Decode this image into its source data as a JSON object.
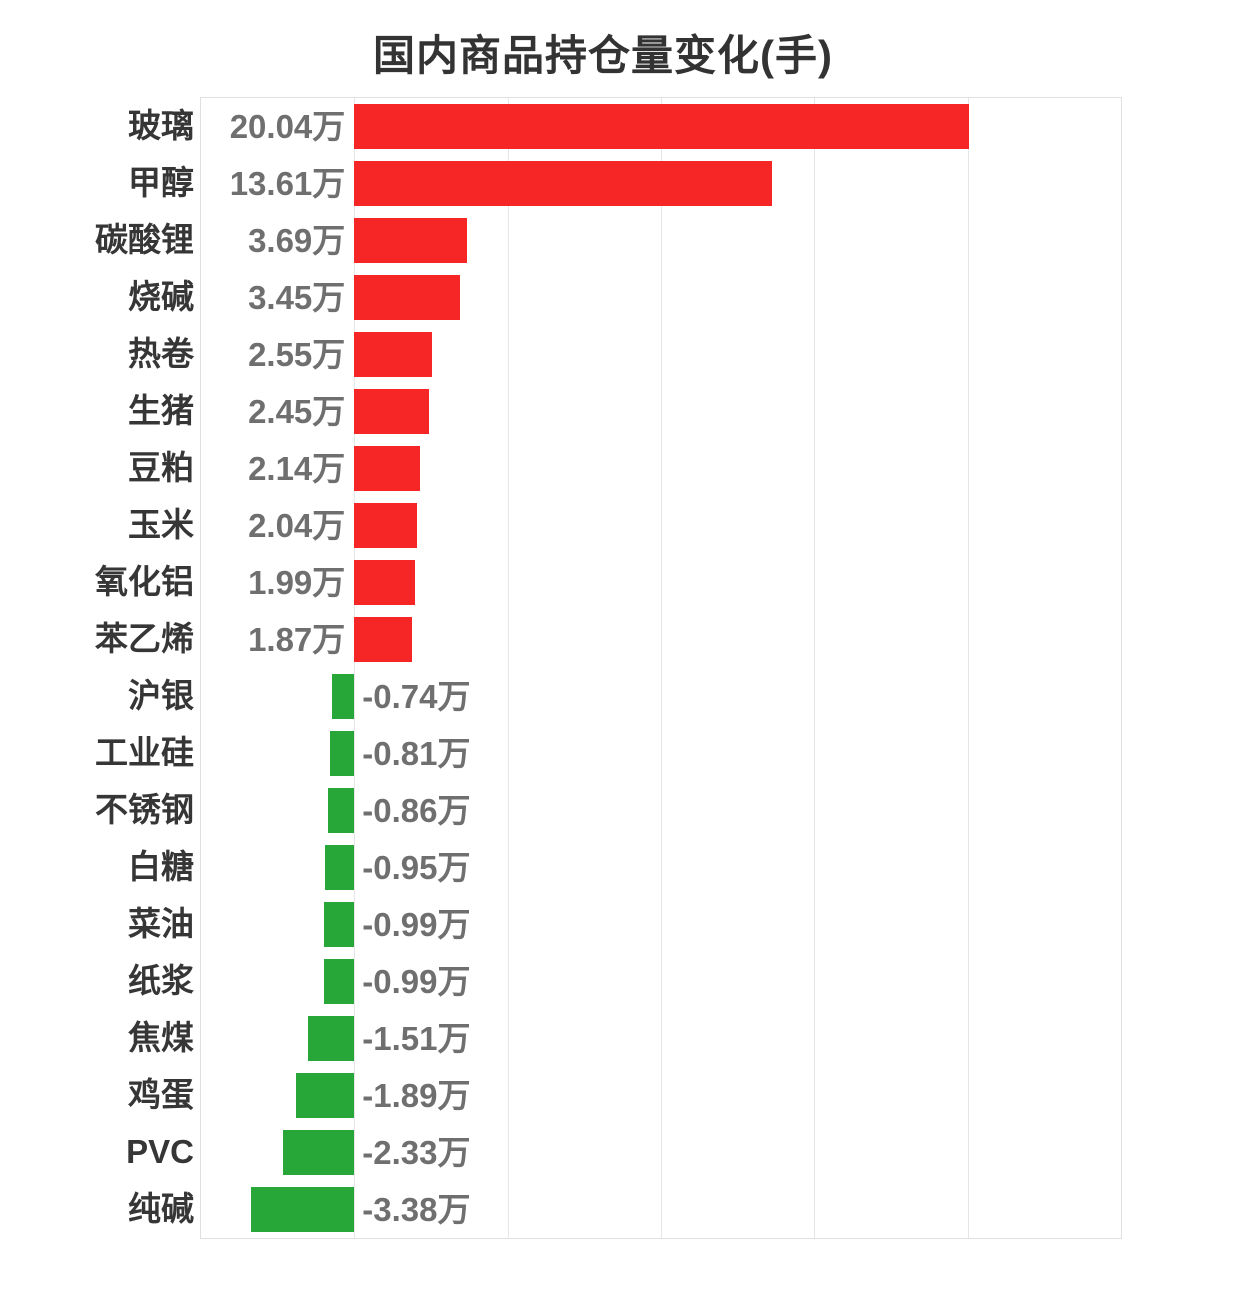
{
  "chart_data": {
    "type": "bar",
    "orientation": "horizontal",
    "title": "国内商品持仓量变化(手)",
    "unit": "万",
    "categories": [
      "玻璃",
      "甲醇",
      "碳酸锂",
      "烧碱",
      "热卷",
      "生猪",
      "豆粕",
      "玉米",
      "氧化铝",
      "苯乙烯",
      "沪银",
      "工业硅",
      "不锈钢",
      "白糖",
      "菜油",
      "纸浆",
      "焦煤",
      "鸡蛋",
      "PVC",
      "纯碱"
    ],
    "values": [
      20.04,
      13.61,
      3.69,
      3.45,
      2.55,
      2.45,
      2.14,
      2.04,
      1.99,
      1.87,
      -0.74,
      -0.81,
      -0.86,
      -0.95,
      -0.99,
      -0.99,
      -1.51,
      -1.89,
      -2.33,
      -3.38
    ],
    "value_labels": [
      "20.04万",
      "13.61万",
      "3.69万",
      "3.45万",
      "2.55万",
      "2.45万",
      "2.14万",
      "2.04万",
      "1.99万",
      "1.87万",
      "-0.74万",
      "-0.81万",
      "-0.86万",
      "-0.95万",
      "-0.99万",
      "-0.99万",
      "-1.51万",
      "-1.89万",
      "-2.33万",
      "-3.38万"
    ],
    "xlim": [
      -5,
      25
    ],
    "grid_step": 5,
    "grid": true,
    "legend": "none",
    "colors": {
      "positive_bar": "#f62626",
      "negative_bar": "#26a737",
      "title_text": "#333333",
      "category_text": "#363636",
      "value_text": "#6f6f6f",
      "gridline": "#e6e6e6",
      "plot_border": "#e0e0e0",
      "background": "#ffffff"
    }
  }
}
